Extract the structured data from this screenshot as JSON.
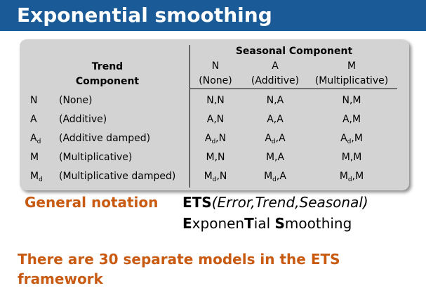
{
  "slide": {
    "title": "Exponential smoothing",
    "colors": {
      "title_bar": "#1a5a96",
      "accent": "#c85a12",
      "table_bg": "#d3d3d3"
    }
  },
  "table": {
    "trend_header": [
      "Trend",
      "Component"
    ],
    "seasonal_header": "Seasonal Component",
    "seasonal_columns": [
      {
        "code": "N",
        "label": "(None)"
      },
      {
        "code": "A",
        "label": "(Additive)"
      },
      {
        "code": "M",
        "label": "(Multiplicative)"
      }
    ],
    "rows": [
      {
        "code": "N",
        "sub": "",
        "label": "(None)",
        "cells": [
          {
            "a": "N,N",
            "b": ""
          },
          {
            "a": "N,A",
            "b": ""
          },
          {
            "a": "N,M",
            "b": ""
          }
        ]
      },
      {
        "code": "A",
        "sub": "",
        "label": "(Additive)",
        "cells": [
          {
            "a": "A,N",
            "b": ""
          },
          {
            "a": "A,A",
            "b": ""
          },
          {
            "a": "A,M",
            "b": ""
          }
        ]
      },
      {
        "code": "A",
        "sub": "d",
        "label": "(Additive damped)",
        "cells": [
          {
            "a": "A",
            "b": ",N"
          },
          {
            "a": "A",
            "b": ",A"
          },
          {
            "a": "A",
            "b": ",M"
          }
        ]
      },
      {
        "code": "M",
        "sub": "",
        "label": "(Multiplicative)",
        "cells": [
          {
            "a": "M,N",
            "b": ""
          },
          {
            "a": "M,A",
            "b": ""
          },
          {
            "a": "M,M",
            "b": ""
          }
        ]
      },
      {
        "code": "M",
        "sub": "d",
        "label": "(Multiplicative damped)",
        "cells": [
          {
            "a": "M",
            "b": ",N"
          },
          {
            "a": "M",
            "b": ",A"
          },
          {
            "a": "M",
            "b": ",M"
          }
        ]
      }
    ]
  },
  "general_notation": {
    "label": "General notation",
    "ets": "ETS",
    "args": "(Error,Trend,Seasonal)",
    "expansion_parts": [
      {
        "text": "E",
        "bold": true
      },
      {
        "text": "xponen",
        "bold": false
      },
      {
        "text": "T",
        "bold": true
      },
      {
        "text": "ial ",
        "bold": false
      },
      {
        "text": "S",
        "bold": true
      },
      {
        "text": "moothing",
        "bold": false
      }
    ]
  },
  "footer_text": "There are 30 separate models in the ETS framework"
}
